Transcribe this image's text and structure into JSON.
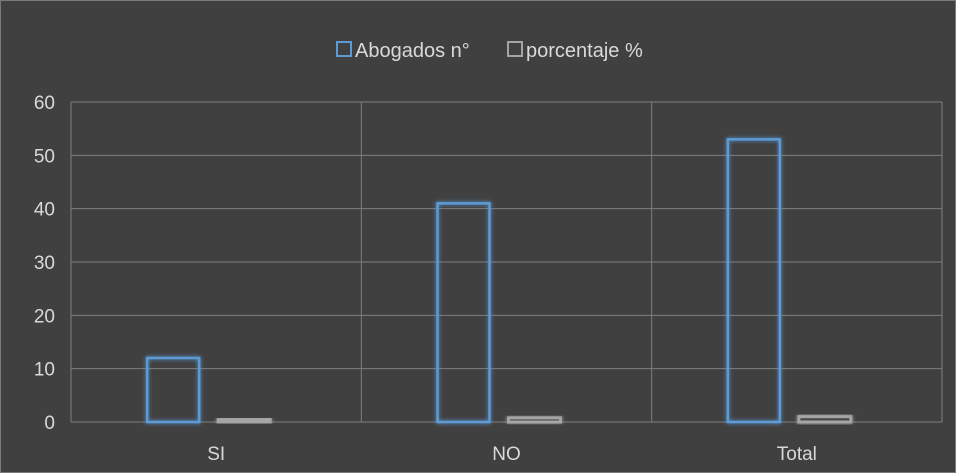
{
  "chart_data": {
    "type": "bar",
    "categories": [
      "SI",
      "NO",
      "Total"
    ],
    "series": [
      {
        "name": "Abogados n°",
        "values": [
          12,
          41,
          53
        ],
        "color": "#5b9bd5"
      },
      {
        "name": "porcentaje %",
        "values": [
          0.23,
          0.77,
          1.0
        ],
        "color": "#a5a5a5"
      }
    ],
    "yticks": [
      "0",
      "10",
      "20",
      "30",
      "40",
      "50",
      "60"
    ],
    "ylim": [
      0,
      60
    ],
    "grid": true,
    "legend_position": "top",
    "background_color": "#404040",
    "gridline_color": "#7f7f7f",
    "text_color": "#d9d9d9"
  }
}
